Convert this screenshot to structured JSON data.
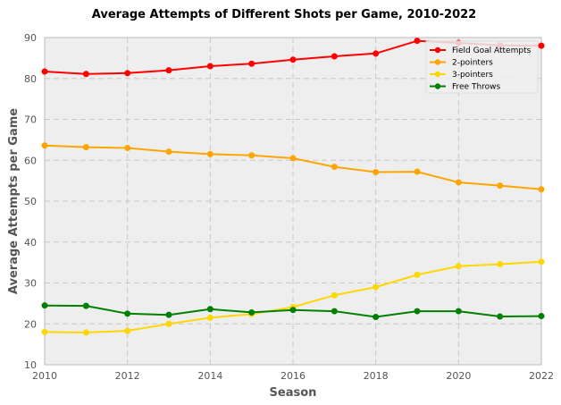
{
  "chart_data": {
    "type": "line",
    "title": "Average Attempts of Different Shots per Game, 2010-2022",
    "xlabel": "Season",
    "ylabel": "Average Attempts per Game",
    "xlim": [
      2010,
      2022
    ],
    "ylim": [
      10,
      90
    ],
    "xticks": [
      2010,
      2012,
      2014,
      2016,
      2018,
      2020,
      2022
    ],
    "yticks": [
      10,
      20,
      30,
      40,
      50,
      60,
      70,
      80,
      90
    ],
    "grid": true,
    "legend_position": "top-right",
    "x": [
      2010,
      2011,
      2012,
      2013,
      2014,
      2015,
      2016,
      2017,
      2018,
      2019,
      2020,
      2021,
      2022
    ],
    "series": [
      {
        "name": "Field Goal Attempts",
        "color": "#ff0000",
        "values": [
          81.7,
          81.1,
          81.3,
          82.0,
          83.0,
          83.6,
          84.6,
          85.4,
          86.1,
          89.2,
          88.7,
          88.1,
          88.0
        ]
      },
      {
        "name": "2-pointers",
        "color": "#ffa500",
        "values": [
          63.6,
          63.2,
          63.0,
          62.1,
          61.5,
          61.2,
          60.5,
          58.4,
          57.1,
          57.2,
          54.6,
          53.8,
          52.9
        ]
      },
      {
        "name": "3-pointers",
        "color": "#ffd700",
        "values": [
          18.0,
          17.9,
          18.3,
          20.0,
          21.5,
          22.4,
          24.1,
          27.0,
          29.0,
          32.0,
          34.1,
          34.6,
          35.2
        ]
      },
      {
        "name": "Free Throws",
        "color": "#008000",
        "values": [
          24.5,
          24.4,
          22.5,
          22.2,
          23.6,
          22.8,
          23.4,
          23.1,
          21.7,
          23.1,
          23.1,
          21.8,
          21.9
        ]
      }
    ]
  }
}
